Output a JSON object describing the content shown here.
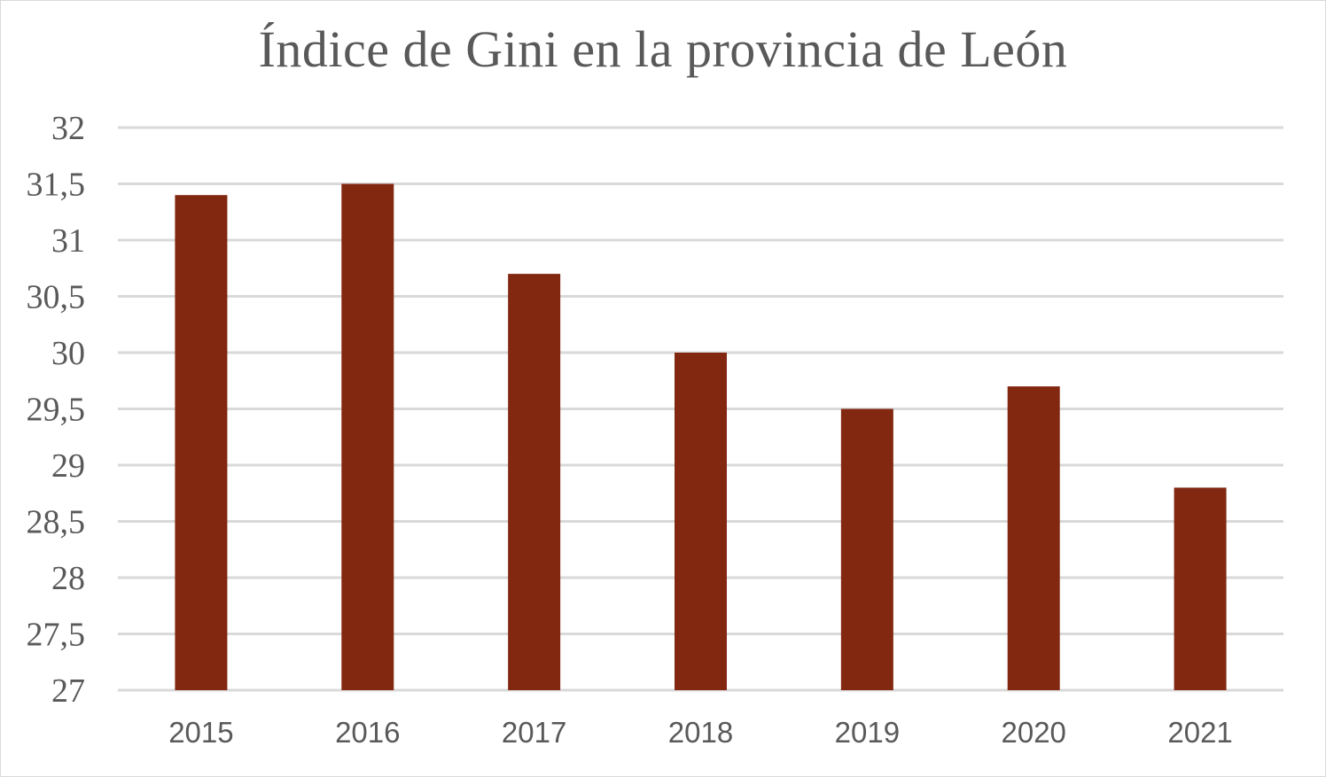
{
  "chart_data": {
    "type": "bar",
    "title": "Índice de Gini en la provincia  de León",
    "xlabel": "",
    "ylabel": "",
    "categories": [
      "2015",
      "2016",
      "2017",
      "2018",
      "2019",
      "2020",
      "2021"
    ],
    "values": [
      31.4,
      31.5,
      30.7,
      30.0,
      29.5,
      29.7,
      28.8
    ],
    "ylim": [
      27,
      32
    ],
    "y_ticks": [
      "27",
      "27,5",
      "28",
      "28,5",
      "29",
      "29,5",
      "30",
      "30,5",
      "31",
      "31,5",
      "32"
    ],
    "grid": true,
    "legend": "none",
    "bar_color": "#822811",
    "grid_color": "#d9d9d9",
    "text_color": "#595959"
  }
}
